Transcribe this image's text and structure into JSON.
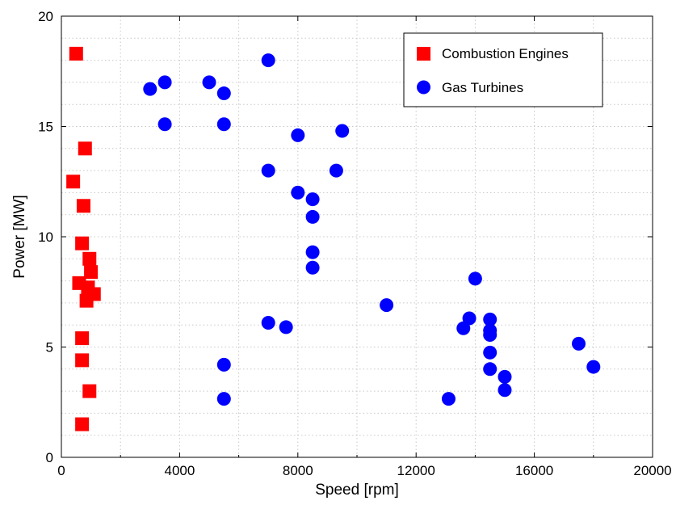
{
  "chart_data": {
    "type": "scatter",
    "xlabel": "Speed [rpm]",
    "ylabel": "Power [MW]",
    "xlim": [
      0,
      20000
    ],
    "ylim": [
      0,
      20
    ],
    "xticks": [
      0,
      4000,
      8000,
      12000,
      16000,
      20000
    ],
    "yticks": [
      0,
      5,
      10,
      15,
      20
    ],
    "x_minor_step": 2000,
    "y_minor_step": 1,
    "grid": true,
    "legend_position": "top-right",
    "series": [
      {
        "name": "Combustion Engines",
        "marker": "square",
        "color": "#ff0000",
        "points": [
          [
            500,
            18.3
          ],
          [
            800,
            14.0
          ],
          [
            400,
            12.5
          ],
          [
            750,
            11.4
          ],
          [
            700,
            9.7
          ],
          [
            950,
            9.0
          ],
          [
            1000,
            8.4
          ],
          [
            600,
            7.9
          ],
          [
            900,
            7.7
          ],
          [
            1100,
            7.4
          ],
          [
            850,
            7.1
          ],
          [
            700,
            5.4
          ],
          [
            700,
            4.4
          ],
          [
            950,
            3.0
          ],
          [
            700,
            1.5
          ]
        ]
      },
      {
        "name": "Gas Turbines",
        "marker": "circle",
        "color": "#0000ff",
        "points": [
          [
            3000,
            16.7
          ],
          [
            3500,
            17.0
          ],
          [
            5000,
            17.0
          ],
          [
            5500,
            16.5
          ],
          [
            7000,
            18.0
          ],
          [
            3500,
            15.1
          ],
          [
            5500,
            15.1
          ],
          [
            8000,
            14.6
          ],
          [
            9500,
            14.8
          ],
          [
            7000,
            13.0
          ],
          [
            9300,
            13.0
          ],
          [
            8000,
            12.0
          ],
          [
            8500,
            11.7
          ],
          [
            8500,
            10.9
          ],
          [
            8500,
            9.3
          ],
          [
            8500,
            8.6
          ],
          [
            14000,
            8.1
          ],
          [
            11000,
            6.9
          ],
          [
            13800,
            6.3
          ],
          [
            14500,
            6.25
          ],
          [
            7000,
            6.1
          ],
          [
            7600,
            5.9
          ],
          [
            13600,
            5.85
          ],
          [
            14500,
            5.75
          ],
          [
            14500,
            5.55
          ],
          [
            14500,
            4.75
          ],
          [
            17500,
            5.15
          ],
          [
            5500,
            4.2
          ],
          [
            14500,
            4.0
          ],
          [
            18000,
            4.1
          ],
          [
            15000,
            3.65
          ],
          [
            15000,
            3.05
          ],
          [
            5500,
            2.65
          ],
          [
            13100,
            2.65
          ]
        ]
      }
    ]
  }
}
